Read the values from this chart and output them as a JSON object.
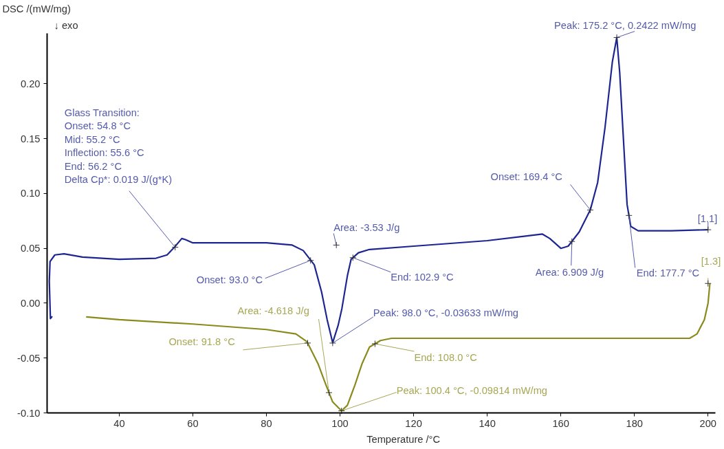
{
  "chart_data": {
    "type": "line",
    "ylabel": "DSC /(mW/mg)",
    "xlabel": "Temperature /°C",
    "xlim": [
      20.4,
      202
    ],
    "ylim": [
      -0.1,
      0.246
    ],
    "xticks": [
      40,
      60,
      80,
      100,
      120,
      140,
      160,
      180,
      200
    ],
    "yticks": [
      {
        "value": -0.1,
        "label": "-0.10"
      },
      {
        "value": -0.05,
        "label": "-0.05"
      },
      {
        "value": 0,
        "label": "0.00"
      },
      {
        "value": 0.05,
        "label": "0.05"
      },
      {
        "value": 0.1,
        "label": "0.10"
      },
      {
        "value": 0.15,
        "label": "0.15"
      },
      {
        "value": 0.2,
        "label": "0.20"
      }
    ],
    "grid": false,
    "line_style": "solid",
    "marker": "none",
    "series": [
      {
        "color": "#1c2590",
        "x": [
          21.8,
          21.3,
          21.0,
          21.2,
          22.5,
          25,
          30,
          40,
          50,
          53,
          55,
          57,
          58,
          60,
          70,
          80,
          87,
          90,
          93,
          95,
          96.5,
          98,
          99.5,
          100.5,
          102,
          103,
          105,
          108,
          120,
          140,
          150,
          155,
          157,
          160,
          162,
          165,
          168,
          170,
          172,
          174,
          175.2,
          176,
          177,
          178,
          179,
          181,
          183,
          190,
          200
        ],
        "values": [
          -0.012,
          -0.014,
          0.02,
          0.038,
          0.044,
          0.045,
          0.042,
          0.04,
          0.041,
          0.044,
          0.051,
          0.059,
          0.058,
          0.055,
          0.055,
          0.055,
          0.053,
          0.048,
          0.035,
          0.01,
          -0.015,
          -0.036,
          -0.02,
          -0.005,
          0.025,
          0.04,
          0.046,
          0.049,
          0.052,
          0.057,
          0.061,
          0.063,
          0.059,
          0.05,
          0.052,
          0.065,
          0.085,
          0.11,
          0.16,
          0.22,
          0.2422,
          0.21,
          0.15,
          0.09,
          0.07,
          0.066,
          0.066,
          0.066,
          0.067
        ]
      },
      {
        "color": "#8a8a1c",
        "x": [
          31,
          40,
          60,
          80,
          88,
          91,
          94,
          96,
          98,
          100.4,
          102,
          104,
          106,
          108,
          111,
          114,
          130,
          160,
          180,
          195,
          197,
          199,
          200,
          200.5
        ],
        "values": [
          -0.0125,
          -0.015,
          -0.019,
          -0.024,
          -0.028,
          -0.035,
          -0.055,
          -0.073,
          -0.09,
          -0.09814,
          -0.093,
          -0.075,
          -0.055,
          -0.04,
          -0.034,
          -0.032,
          -0.032,
          -0.032,
          -0.032,
          -0.032,
          -0.028,
          -0.015,
          0.0,
          0.018
        ]
      }
    ],
    "annotations": [
      {
        "text": "Glass Transition:\nOnset: 54.8 °C\nMid: 55.2 °C\nInflection: 55.6 °C\nEnd: 56.2 °C\nDelta Cp*: 0.019 J/(g*K)",
        "x": 55.2,
        "y": 0.051
      },
      {
        "text": "Area: -3.53 J/g",
        "x": 99,
        "y": 0.053
      },
      {
        "text": "Onset: 93.0 °C",
        "x": 92,
        "y": 0.039
      },
      {
        "text": "End: 102.9 °C",
        "x": 103.5,
        "y": 0.0415
      },
      {
        "text": "Peak: 98.0 °C, -0.03633 mW/mg",
        "x": 98,
        "y": -0.03633
      },
      {
        "text": "Area: -4.618 J/g",
        "x": 97,
        "y": -0.0815
      },
      {
        "text": "Onset: 91.8 °C",
        "x": 91.2,
        "y": -0.0363
      },
      {
        "text": "End: 108.0 °C",
        "x": 109.5,
        "y": -0.037
      },
      {
        "text": "Peak: 100.4 °C, -0.09814 mW/mg",
        "x": 100.4,
        "y": -0.09814
      },
      {
        "text": "Peak: 175.2 °C, 0.2422 mW/mg",
        "x": 175.2,
        "y": 0.2422
      },
      {
        "text": "Onset: 169.4 °C",
        "x": 168,
        "y": 0.085
      },
      {
        "text": "Area: 6.909 J/g",
        "x": 163,
        "y": 0.0563
      },
      {
        "text": "End: 177.7 °C",
        "x": 178.5,
        "y": 0.08
      },
      {
        "text": "[1.1]",
        "x": 200,
        "y": 0.067
      },
      {
        "text": "[1.3]",
        "x": 200,
        "y": 0.018
      },
      "↓ exo"
    ]
  }
}
